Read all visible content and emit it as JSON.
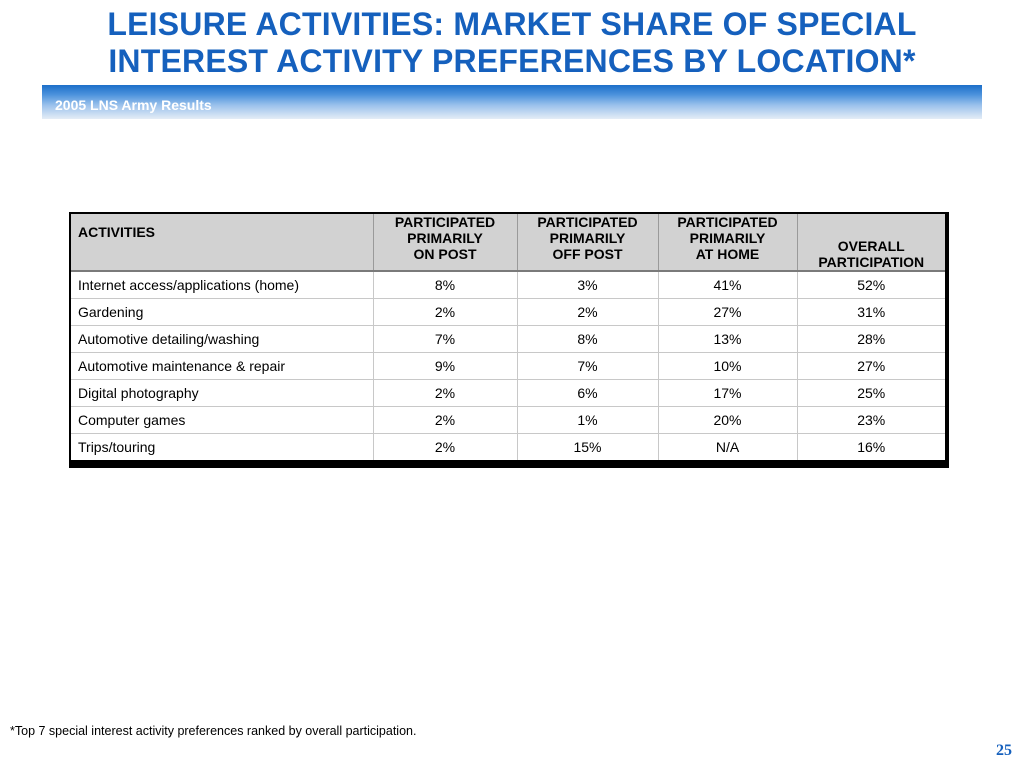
{
  "title": {
    "line1": "LEISURE ACTIVITIES: MARKET SHARE OF SPECIAL",
    "line2": "INTEREST ACTIVITY PREFERENCES BY LOCATION*"
  },
  "banner": {
    "text": "2005 LNS Army Results"
  },
  "table": {
    "headers": [
      {
        "line1": "ACTIVITIES"
      },
      {
        "line1": "PARTICIPATED",
        "line2": "PRIMARILY",
        "line3": "ON POST"
      },
      {
        "line1": "PARTICIPATED",
        "line2": "PRIMARILY",
        "line3": "OFF POST"
      },
      {
        "line1": "PARTICIPATED",
        "line2": "PRIMARILY",
        "line3": "AT HOME"
      },
      {
        "line1": "OVERALL",
        "line2": "PARTICIPATION"
      }
    ],
    "rows": [
      [
        "Internet access/applications (home)",
        "8%",
        "3%",
        "41%",
        "52%"
      ],
      [
        "Gardening",
        "2%",
        "2%",
        "27%",
        "31%"
      ],
      [
        "Automotive detailing/washing",
        "7%",
        "8%",
        "13%",
        "28%"
      ],
      [
        "Automotive maintenance & repair",
        "9%",
        "7%",
        "10%",
        "27%"
      ],
      [
        "Digital photography",
        "2%",
        "6%",
        "17%",
        "25%"
      ],
      [
        "Computer games",
        "2%",
        "1%",
        "20%",
        "23%"
      ],
      [
        "Trips/touring",
        "2%",
        "15%",
        "N/A",
        "16%"
      ]
    ]
  },
  "footnote": "*Top 7 special interest activity preferences ranked by overall participation.",
  "page_number": "25",
  "colors": {
    "title": "#1560bd",
    "banner_top": "#1c6fc9",
    "banner_bottom": "#e4edf6",
    "header_bg": "#d2d2d2"
  }
}
